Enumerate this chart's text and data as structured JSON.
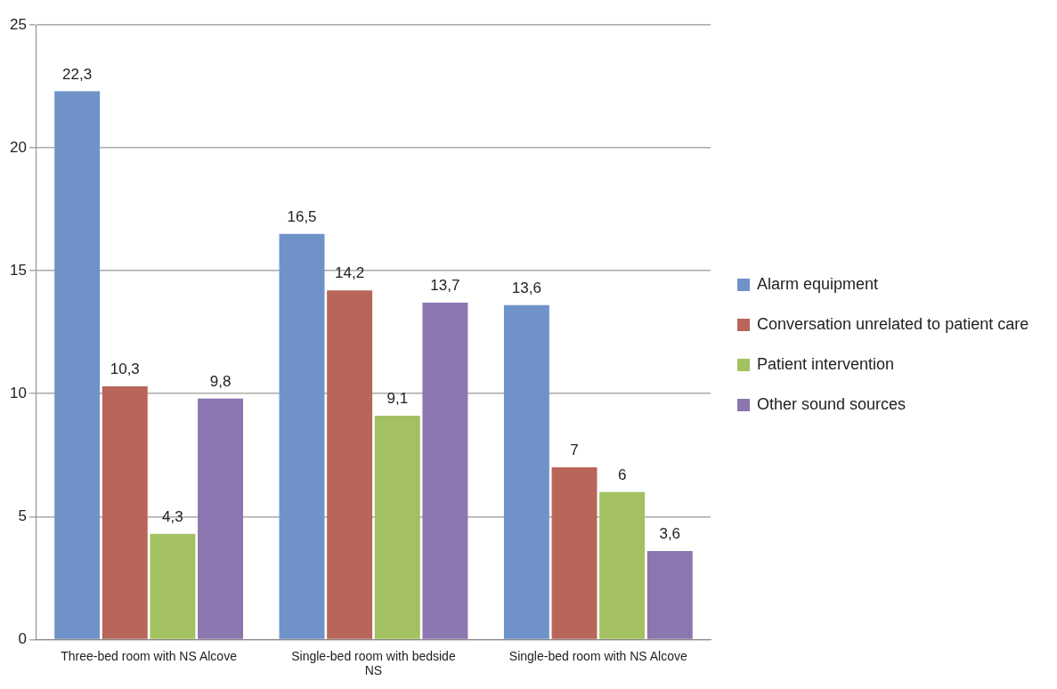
{
  "chart_data": {
    "type": "bar",
    "categories": [
      "Three-bed room with NS Alcove",
      "Single-bed room with bedside NS",
      "Single-bed room with NS Alcove"
    ],
    "series": [
      {
        "name": "Alarm equipment",
        "color": "#6f93c9",
        "values": [
          22.3,
          16.5,
          13.6
        ],
        "value_labels": [
          "22,3",
          "16,5",
          "13,6"
        ]
      },
      {
        "name": "Conversation unrelated to patient care",
        "color": "#b9665a",
        "values": [
          10.3,
          14.2,
          7
        ],
        "value_labels": [
          "10,3",
          "14,2",
          "7"
        ]
      },
      {
        "name": "Patient intervention",
        "color": "#a3c160",
        "values": [
          4.3,
          9.1,
          6
        ],
        "value_labels": [
          "4,3",
          "9,1",
          "6"
        ]
      },
      {
        "name": "Other sound sources",
        "color": "#8b76b0",
        "values": [
          9.8,
          13.7,
          3.6
        ],
        "value_labels": [
          "9,8",
          "13,7",
          "3,6"
        ]
      }
    ],
    "ylim": [
      0,
      25
    ],
    "yticks": [
      0,
      5,
      10,
      15,
      20,
      25
    ],
    "grid": "y",
    "legend": "right"
  }
}
